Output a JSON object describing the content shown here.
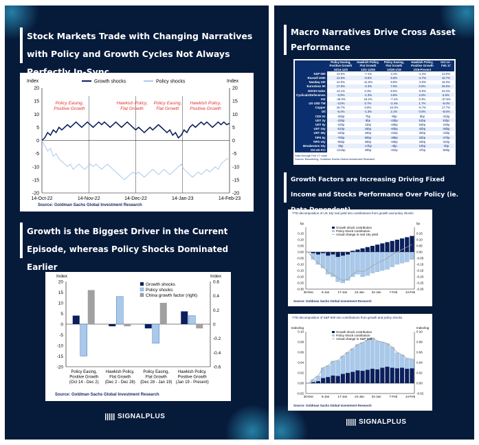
{
  "left": {
    "title1": "Stock Markets Trade with Changing Narratives with Policy and Growth Cycles Not Always Perfectly In-Sync",
    "title2": "Growth is the Biggest Driver in the Current Episode, whereas Policy Shocks Dominated Earlier",
    "logo": "SIGNALPLUS"
  },
  "right": {
    "title1": "Macro Narratives Drive Cross Asset Performance",
    "title2": "Growth Factors are Increasing Driving Fixed Income and Stocks Performance Over Policy (ie. Data Dependent)",
    "logo": "SIGNALPLUS",
    "table_note1": "Data through Feb 17 close",
    "table_note2": "Source: Bloomberg, Goldman Sachs Global Investment Research",
    "yields_title": "YTD decomposition of US 10y real yield into contributions from growth and policy shocks",
    "yields_source": "Source: Goldman Sachs Global Investment Research",
    "spx_title": "YTD decomposition of S&P 500 into contributions from growth and policy shocks",
    "spx_source": "Source: Goldman Sachs Global Investment Research"
  },
  "macro_table": {
    "headers": [
      "",
      "Policy Easing, Positive Growth",
      "Hawkish Policy, Flat Growth",
      "Policy Easing, Flat Growth",
      "Hawkish Policy, Positive Growth",
      "Oct 14 - Feb 17"
    ],
    "subheaders": [
      "",
      "10/14-12/2",
      "12/2-12/28",
      "12/28-1/19",
      "1/19-Present",
      ""
    ],
    "rows": [
      [
        "S&P 500",
        "13.0%",
        "-7.1%",
        "3.1%",
        "-2.4%",
        "13.0%"
      ],
      [
        "Russell 2000",
        "12.5%",
        "-9.6%",
        "6.8%",
        "-2.7%",
        "15.7%"
      ],
      [
        "Nasdaq 100",
        "12.0%",
        "-11.5%",
        "9.8%",
        "-3.0%",
        "15.0%"
      ],
      [
        "Eurostoxx 50",
        "17.6%",
        "-4.3%",
        "7.5%",
        "0.9%",
        "26.0%"
      ],
      [
        "HSCEI Index",
        "13.1%",
        "0.3%",
        "8.0%",
        "-6.0%",
        "24.2%"
      ],
      [
        "Cyclicals/Defensives",
        "-3.9%",
        "-1.3%",
        "3.9%",
        "2.0%",
        "6.5%"
      ],
      [
        "VIX",
        "-40.0%",
        "16.2%",
        "-7.2%",
        "0.3%",
        "-37.5%"
      ],
      [
        "US USD TW",
        "-3.0%",
        "0.7%",
        "-2.4%",
        "1.7%",
        "-6.0%"
      ],
      [
        "Copper",
        "16.7%",
        "0.8%",
        "10.3%",
        "-6.7%",
        "17.7%"
      ],
      [
        "Oil",
        "-5.4%",
        "-1.3%",
        "2.1%",
        "0.5%",
        "-8.6%"
      ],
      [
        "CDX IG",
        "-26bp",
        "7bp",
        "-8bp",
        "9bp",
        "-31bp"
      ],
      [
        "UST 2y",
        "-22bp",
        "8bp",
        "-23bp",
        "51bp",
        "10bp"
      ],
      [
        "UST 5y",
        "-42bp",
        "11bp",
        "-46bp",
        "54bp",
        "-24bp"
      ],
      [
        "UST 10y",
        "-51bp",
        "15bp",
        "-40bp",
        "42bp",
        "-28bp"
      ],
      [
        "UST 30y",
        "-44bp",
        "42bp",
        "-41bp",
        "32bp",
        "-12bp"
      ],
      [
        "TIPS 5y",
        "-70bp",
        "50bp",
        "-39bp",
        "32bp",
        "-27bp"
      ],
      [
        "TIPS 10y",
        "-56bp",
        "35bp",
        "-45bp",
        "34bp",
        "-31bp"
      ],
      [
        "Breakevens 10y",
        "5bp",
        "-17bp",
        "-4bp",
        "12bp",
        "-4bp"
      ],
      [
        "GS US FCI",
        "-121bp",
        "40bp",
        "-31bp",
        "47bp",
        "-66bp"
      ]
    ]
  },
  "chart_data": [
    {
      "type": "line",
      "title": "",
      "ylabel": "Index",
      "ylabel_right": "Index",
      "ylim": [
        -20,
        20
      ],
      "yticks": [
        -20,
        -15,
        -10,
        -5,
        0,
        5,
        10,
        15,
        20
      ],
      "xtick_labels": [
        "14-Oct-22",
        "14-Nov-22",
        "14-Dec-22",
        "14-Jan-23",
        "14-Feb-23"
      ],
      "colors": {
        "Growth shocks": "#0b1f5c",
        "Policy shocks": "#a9c9ea"
      },
      "annotations": [
        "Policy Easing, Positive Growth",
        "Hawkish Policy, Flat Growth",
        "Policy Easing, Flat Growth",
        "Hawkish Policy, Positive Growth"
      ],
      "source": "Source: Goldman Sachs Global Investment Research",
      "series": [
        {
          "name": "Growth shocks",
          "values": [
            0,
            1,
            3,
            2,
            4,
            3,
            5,
            4,
            5,
            6,
            5,
            6,
            7,
            6,
            5,
            6,
            7,
            6,
            5,
            6,
            7,
            6,
            7,
            6,
            5,
            6,
            7,
            6,
            5,
            6,
            7,
            6,
            5,
            4,
            5,
            4,
            3,
            4,
            5,
            4,
            5,
            6,
            5,
            4,
            3,
            4,
            2,
            3,
            1,
            2,
            4,
            3,
            5,
            6,
            5,
            6,
            7,
            6,
            7,
            6,
            5,
            6,
            7,
            6,
            7,
            6,
            6.5
          ]
        },
        {
          "name": "Policy shocks",
          "values": [
            0,
            -2,
            -4,
            -3,
            -6,
            -5,
            -7,
            -8,
            -9,
            -10,
            -9,
            -11,
            -10,
            -9,
            -10,
            -11,
            -10,
            -9,
            -10,
            -9,
            -10,
            -11,
            -10,
            -9,
            -10,
            -11,
            -12,
            -13,
            -14,
            -15,
            -14,
            -13,
            -12,
            -13,
            -12,
            -13,
            -14,
            -13,
            -12,
            -11,
            -12,
            -13,
            -12,
            -11,
            -12,
            -13,
            -12,
            -11,
            -10,
            -9,
            -11,
            -12,
            -13,
            -14,
            -13,
            -12,
            -13,
            -12,
            -11,
            -12,
            -11,
            -10,
            -11,
            -9,
            -8,
            -7,
            -7
          ]
        }
      ]
    },
    {
      "type": "bar",
      "title": "",
      "ylabel": "Index",
      "ylabel_right": "Index",
      "ylim": [
        -20,
        20
      ],
      "ylim_right": [
        -0.6,
        0.6
      ],
      "categories": [
        "Policy Easing, Positive Growth (Oct 14 - Dec 2)",
        "Hawkish Policy, Flat Growth (Dec 2 - Dec 28)",
        "Policy Easing, Flat Growth (Dec 28 - Jan 19)",
        "Hawkish Policy, Positive Growth (Jan 19 - Present)"
      ],
      "colors": {
        "Growth shocks": "#0b1f5c",
        "Policy shocks": "#a9c9ea",
        "China growth factor (right)": "#a0a0a0"
      },
      "source": "Source: Goldman Sachs Global Investment Research",
      "series": [
        {
          "name": "Growth shocks",
          "values": [
            4,
            -1,
            -2,
            6
          ]
        },
        {
          "name": "Policy shocks",
          "values": [
            -15,
            13,
            -9,
            4
          ]
        },
        {
          "name": "China growth factor (right)",
          "values": [
            0.48,
            -0.03,
            0.3,
            -0.06
          ]
        }
      ]
    },
    {
      "type": "bar",
      "title": "YTD decomposition of US 10y real yield into contributions from growth and policy shocks",
      "ylabel": "bp",
      "ylabel_right": "bp",
      "ylim": [
        -0.3,
        0.2
      ],
      "xtick_labels": [
        "30-Dec",
        "6-Jan",
        "17-Jan",
        "24-Jan",
        "31-Jan",
        "7-Feb",
        "14-Feb"
      ],
      "colors": {
        "Growth shock contribution": "#0b1f5c",
        "Policy shock contribution": "#a9c9ea",
        "Actual change in real 10y yield": "#a0a0a0"
      },
      "series": [
        {
          "name": "Growth shock contribution",
          "values": [
            0,
            -0.01,
            -0.02,
            -0.01,
            -0.03,
            -0.02,
            -0.04,
            -0.03,
            -0.02,
            0.01,
            0.02,
            0.03,
            0.04,
            0.05,
            0.06,
            0.07,
            0.08,
            0.09,
            0.1,
            0.11,
            0.12,
            0.13
          ]
        },
        {
          "name": "Policy shock contribution",
          "values": [
            0,
            -0.05,
            -0.08,
            -0.12,
            -0.15,
            -0.18,
            -0.2,
            -0.22,
            -0.21,
            -0.2,
            -0.18,
            -0.2,
            -0.19,
            -0.17,
            -0.16,
            -0.15,
            -0.14,
            -0.12,
            -0.1,
            -0.09,
            -0.08,
            -0.06
          ]
        },
        {
          "name": "Actual change in real 10y yield",
          "values": [
            0,
            -0.05,
            -0.09,
            -0.12,
            -0.16,
            -0.18,
            -0.21,
            -0.23,
            -0.22,
            -0.18,
            -0.15,
            -0.16,
            -0.14,
            -0.11,
            -0.09,
            -0.07,
            -0.05,
            -0.02,
            0.0,
            0.02,
            0.04,
            0.06
          ]
        }
      ]
    },
    {
      "type": "bar",
      "title": "YTD decomposition of S&P 500 into contributions from growth and policy shocks",
      "ylabel": "Index/log",
      "ylabel_right": "Index/log",
      "ylim": [
        -0.02,
        0.1
      ],
      "xtick_labels": [
        "30-Dec",
        "6-Jan",
        "17-Jan",
        "24-Jan",
        "31-Jan",
        "7-Feb",
        "14-Feb"
      ],
      "colors": {
        "Growth shock contribution": "#0b1f5c",
        "Policy shock contribution": "#a9c9ea",
        "Actual change in S&P 500": "#a0a0a0"
      },
      "series": [
        {
          "name": "Growth shock contribution",
          "values": [
            0,
            0.002,
            0.004,
            0.01,
            0.012,
            0.015,
            0.014,
            0.018,
            0.02,
            0.022,
            0.025,
            0.024,
            0.026,
            0.028,
            0.027,
            0.03,
            0.032,
            0.03,
            0.029,
            0.03,
            0.028,
            0.029
          ]
        },
        {
          "name": "Policy shock contribution",
          "values": [
            0,
            0.005,
            0.01,
            0.02,
            0.022,
            0.028,
            0.03,
            0.035,
            0.04,
            0.045,
            0.05,
            0.055,
            0.058,
            0.06,
            0.055,
            0.05,
            0.045,
            0.04,
            0.03,
            0.025,
            0.02,
            0.018
          ]
        },
        {
          "name": "Actual change in S&P 500",
          "values": [
            0,
            0.008,
            0.014,
            0.03,
            0.034,
            0.042,
            0.044,
            0.053,
            0.06,
            0.067,
            0.075,
            0.079,
            0.084,
            0.088,
            0.082,
            0.08,
            0.077,
            0.07,
            0.06,
            0.055,
            0.048,
            0.047
          ]
        }
      ]
    }
  ]
}
